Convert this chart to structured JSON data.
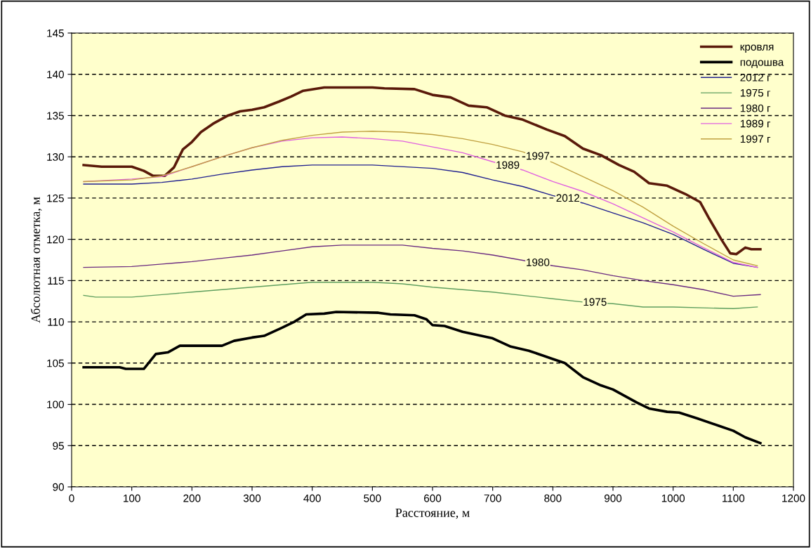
{
  "chart_data": {
    "type": "line",
    "xlabel": "Расстояние, м",
    "ylabel": "Абсолютная отметка, м",
    "xlim": [
      0,
      1200
    ],
    "xticks": [
      0,
      100,
      200,
      300,
      400,
      500,
      600,
      700,
      800,
      900,
      1000,
      1100,
      1200
    ],
    "ylim": [
      90,
      145
    ],
    "yticks": [
      90,
      95,
      100,
      105,
      110,
      115,
      120,
      125,
      130,
      135,
      140,
      145
    ],
    "grid": "y",
    "line_style": "solid",
    "legend": "top right",
    "series": [
      {
        "name": "кровля",
        "color": "#5a1a0a",
        "x": [
          20,
          50,
          100,
          120,
          135,
          155,
          170,
          185,
          200,
          215,
          235,
          260,
          280,
          300,
          320,
          345,
          365,
          385,
          420,
          500,
          520,
          570,
          600,
          630,
          660,
          690,
          720,
          750,
          790,
          820,
          850,
          880,
          910,
          935,
          960,
          990,
          1020,
          1045,
          1060,
          1080,
          1095,
          1105,
          1120,
          1130,
          1145
        ],
        "values": [
          129.0,
          128.8,
          128.8,
          128.3,
          127.7,
          127.7,
          128.7,
          130.9,
          131.8,
          133.0,
          134.0,
          135.0,
          135.5,
          135.7,
          136.0,
          136.7,
          137.3,
          138.0,
          138.4,
          138.4,
          138.3,
          138.2,
          137.5,
          137.2,
          136.2,
          136.0,
          135.0,
          134.5,
          133.3,
          132.5,
          131.0,
          130.2,
          129.0,
          128.2,
          126.8,
          126.5,
          125.5,
          124.5,
          122.5,
          120.0,
          118.3,
          118.2,
          119.0,
          118.8,
          118.8
        ]
      },
      {
        "name": "подошва",
        "color": "#000000",
        "x": [
          20,
          80,
          90,
          120,
          140,
          160,
          180,
          250,
          270,
          300,
          320,
          350,
          370,
          390,
          420,
          440,
          510,
          530,
          570,
          590,
          600,
          620,
          650,
          700,
          730,
          760,
          800,
          820,
          850,
          880,
          900,
          940,
          960,
          990,
          1010,
          1040,
          1080,
          1100,
          1120,
          1145
        ],
        "values": [
          104.5,
          104.5,
          104.3,
          104.3,
          106.1,
          106.3,
          107.1,
          107.1,
          107.7,
          108.1,
          108.3,
          109.3,
          110.0,
          110.9,
          111.0,
          111.2,
          111.1,
          110.9,
          110.8,
          110.3,
          109.6,
          109.5,
          108.8,
          108.0,
          107.0,
          106.5,
          105.5,
          105.0,
          103.3,
          102.3,
          101.8,
          100.2,
          99.5,
          99.1,
          99.0,
          98.3,
          97.3,
          96.8,
          96.0,
          95.3
        ]
      },
      {
        "name": "2012 г",
        "color": "#20208f",
        "x": [
          20,
          100,
          150,
          200,
          250,
          300,
          350,
          400,
          500,
          600,
          650,
          700,
          750,
          800,
          850,
          900,
          950,
          1000,
          1050,
          1100,
          1140
        ],
        "values": [
          126.7,
          126.7,
          126.9,
          127.3,
          127.9,
          128.4,
          128.8,
          129.0,
          129.0,
          128.6,
          128.1,
          127.2,
          126.4,
          125.3,
          124.4,
          123.2,
          122.0,
          120.6,
          118.8,
          117.1,
          116.6
        ]
      },
      {
        "name": "1975 г",
        "color": "#5f9f5f",
        "x": [
          20,
          40,
          100,
          150,
          200,
          250,
          300,
          350,
          400,
          500,
          550,
          600,
          700,
          800,
          850,
          900,
          950,
          1000,
          1100,
          1140
        ],
        "values": [
          113.2,
          113.0,
          113.0,
          113.3,
          113.6,
          113.9,
          114.2,
          114.5,
          114.8,
          114.8,
          114.6,
          114.2,
          113.6,
          112.8,
          112.4,
          112.2,
          111.8,
          111.8,
          111.6,
          111.8
        ]
      },
      {
        "name": "1980 г",
        "color": "#6a2a80",
        "x": [
          20,
          100,
          150,
          200,
          250,
          300,
          350,
          400,
          450,
          550,
          600,
          650,
          700,
          800,
          850,
          900,
          950,
          1000,
          1050,
          1100,
          1145
        ],
        "values": [
          116.6,
          116.7,
          117.0,
          117.3,
          117.7,
          118.1,
          118.6,
          119.1,
          119.3,
          119.3,
          118.9,
          118.6,
          118.1,
          116.8,
          116.3,
          115.6,
          115.0,
          114.5,
          113.9,
          113.1,
          113.3
        ]
      },
      {
        "name": "1989 г",
        "color": "#e060e0",
        "x": [
          20,
          100,
          150,
          200,
          250,
          300,
          350,
          400,
          450,
          500,
          550,
          600,
          650,
          700,
          750,
          800,
          850,
          900,
          950,
          1000,
          1050,
          1100,
          1140
        ],
        "values": [
          127.0,
          127.3,
          127.6,
          128.8,
          130.0,
          131.1,
          131.9,
          132.3,
          132.4,
          132.2,
          131.9,
          131.2,
          130.5,
          129.4,
          128.4,
          127.0,
          125.8,
          124.3,
          122.6,
          120.9,
          119.0,
          117.2,
          116.6
        ]
      },
      {
        "name": "1997 г",
        "color": "#c0a040",
        "x": [
          20,
          100,
          150,
          200,
          250,
          300,
          350,
          400,
          450,
          500,
          550,
          600,
          650,
          700,
          750,
          800,
          850,
          900,
          950,
          1000,
          1050,
          1100,
          1140
        ],
        "values": [
          127.0,
          127.2,
          127.7,
          128.8,
          130.0,
          131.1,
          132.0,
          132.6,
          133.0,
          133.1,
          133.0,
          132.7,
          132.2,
          131.5,
          130.6,
          129.3,
          127.6,
          125.9,
          123.9,
          121.6,
          119.5,
          117.5,
          116.8
        ]
      }
    ],
    "annotations": [
      {
        "text": "1989",
        "x": 725,
        "y": 128.9
      },
      {
        "text": "1997",
        "x": 775,
        "y": 130.0
      },
      {
        "text": "2012",
        "x": 825,
        "y": 124.9
      },
      {
        "text": "1980",
        "x": 775,
        "y": 117.1
      },
      {
        "text": "1975",
        "x": 870,
        "y": 112.3
      }
    ]
  }
}
